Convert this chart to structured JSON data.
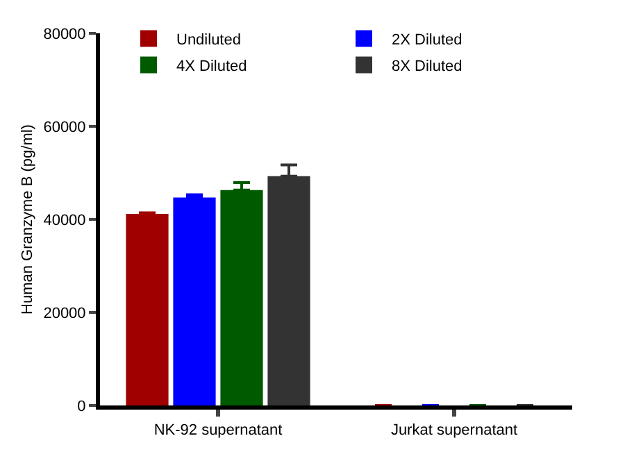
{
  "chart_data": {
    "type": "bar",
    "ylabel": "Human Granzyme B (pg/ml)",
    "categories": [
      "NK-92 supernatant",
      "Jurkat supernatant"
    ],
    "series": [
      {
        "name": "Undiluted",
        "color": "#a00000",
        "values": [
          41200,
          0
        ],
        "errors": [
          [
            41200,
            41400
          ],
          null
        ]
      },
      {
        "name": "2X Diluted",
        "color": "#0000ff",
        "values": [
          44700,
          0
        ],
        "errors": [
          [
            44700,
            45300
          ],
          null
        ]
      },
      {
        "name": "4X Diluted",
        "color": "#005a00",
        "values": [
          46300,
          0
        ],
        "errors": [
          [
            46300,
            47900
          ],
          null
        ]
      },
      {
        "name": "8X Diluted",
        "color": "#333333",
        "values": [
          49300,
          0
        ],
        "errors": [
          [
            49300,
            51700
          ],
          null
        ]
      }
    ],
    "ylim": [
      0,
      80000
    ],
    "yticks": [
      0,
      20000,
      40000,
      60000,
      80000
    ],
    "grid": false,
    "legend": "top"
  }
}
